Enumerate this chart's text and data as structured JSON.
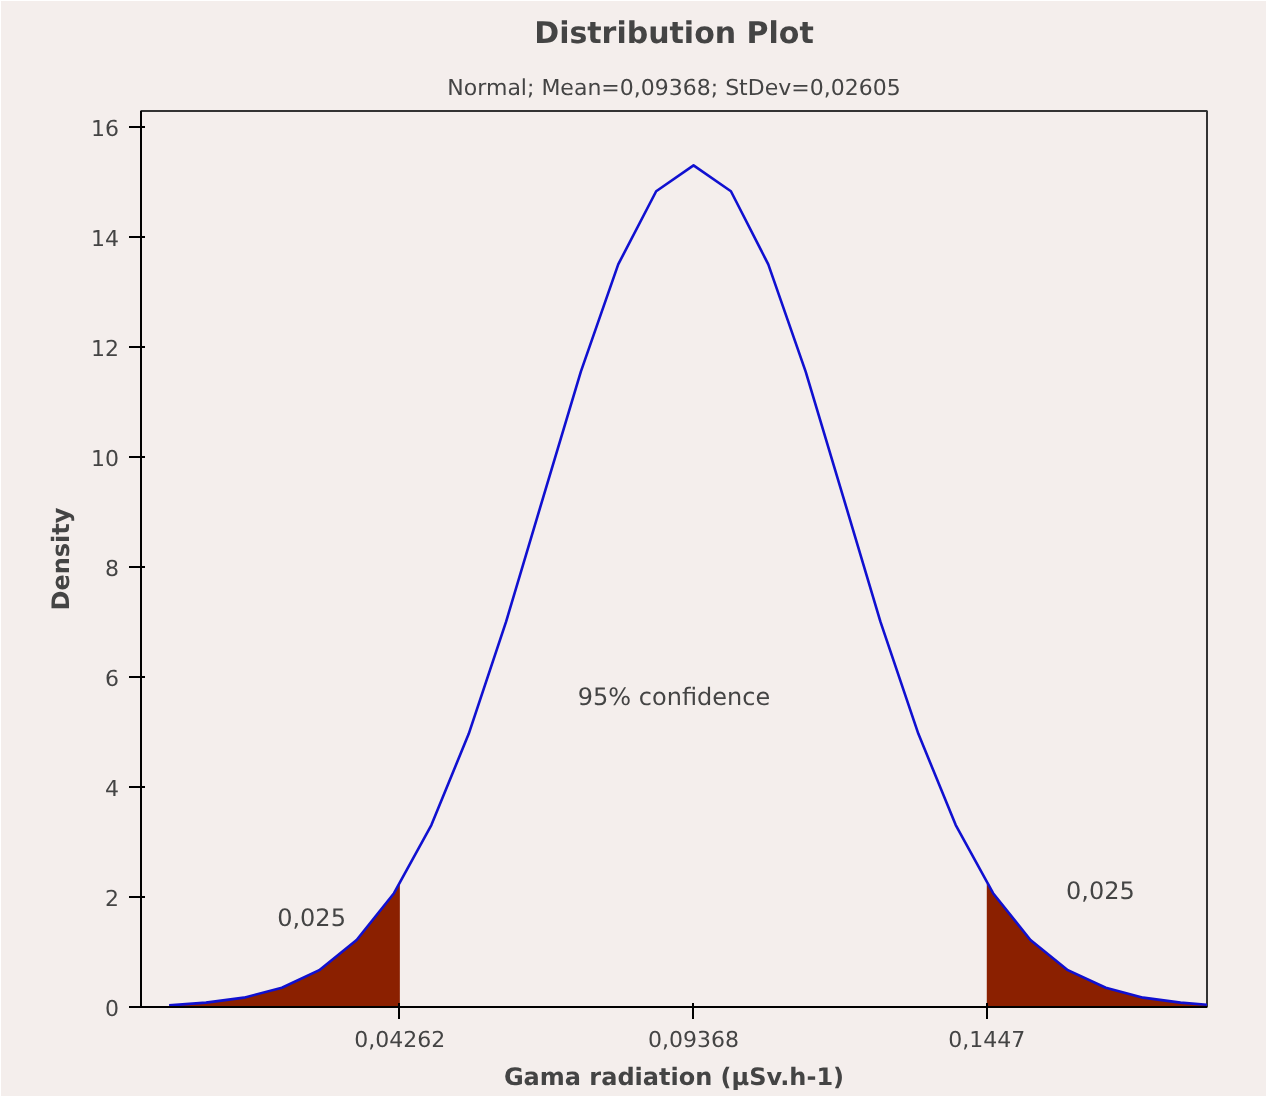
{
  "chart_data": {
    "type": "line",
    "title": "Distribution Plot",
    "subtitle": "Normal; Mean=0,09368; StDev=0,02605",
    "xlabel": "Gama radiation (µSv.h-1)",
    "ylabel": "Density",
    "xlim": [
      -0.0024,
      0.183
    ],
    "ylim": [
      0,
      16.3
    ],
    "xticks": [
      {
        "value": 0.04262,
        "label": "0,04262"
      },
      {
        "value": 0.09368,
        "label": "0,09368"
      },
      {
        "value": 0.1447,
        "label": "0,1447"
      }
    ],
    "yticks": [
      0,
      2,
      4,
      6,
      8,
      10,
      12,
      14,
      16
    ],
    "grid": false,
    "marker": "none",
    "line_style": "solid",
    "series": [
      {
        "type": "area",
        "color": "#8b2000",
        "x": [
          0.0025,
          0.0089,
          0.0155,
          0.0221,
          0.0286,
          0.0351,
          0.0416,
          0.04262
        ],
        "values": [
          0.03,
          0.08,
          0.17,
          0.35,
          0.67,
          1.22,
          2.07,
          2.24
        ]
      },
      {
        "type": "area",
        "color": "#8b2000",
        "x": [
          0.1447,
          0.1458,
          0.1523,
          0.1588,
          0.1654,
          0.1719,
          0.1784,
          0.183
        ],
        "values": [
          2.24,
          2.07,
          1.22,
          0.67,
          0.35,
          0.17,
          0.08,
          0.04
        ]
      },
      {
        "color": "#1010d0",
        "x": [
          0.0025,
          0.0089,
          0.0155,
          0.0221,
          0.0286,
          0.0351,
          0.0416,
          0.0481,
          0.0546,
          0.0611,
          0.0676,
          0.0741,
          0.0806,
          0.0872,
          0.0937,
          0.1002,
          0.1067,
          0.1132,
          0.1197,
          0.1262,
          0.1328,
          0.1393,
          0.1458,
          0.1523,
          0.1588,
          0.1654,
          0.1719,
          0.1784,
          0.183
        ],
        "values": [
          0.03,
          0.08,
          0.17,
          0.35,
          0.67,
          1.22,
          2.07,
          3.31,
          4.97,
          7.01,
          9.29,
          11.56,
          13.51,
          14.84,
          15.31,
          14.84,
          13.51,
          11.56,
          9.29,
          7.01,
          4.97,
          3.31,
          2.07,
          1.22,
          0.67,
          0.35,
          0.17,
          0.08,
          0.04
        ]
      }
    ],
    "annotations": [
      "0,025",
      "95% confidence",
      "0,025"
    ]
  }
}
